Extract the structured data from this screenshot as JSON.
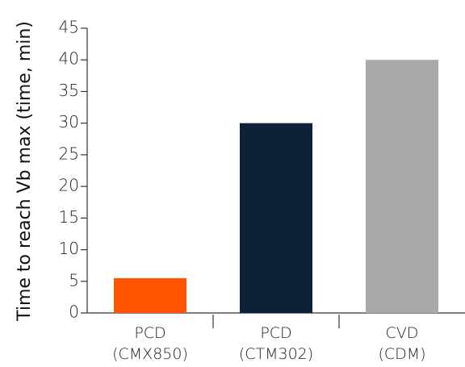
{
  "chart_data": {
    "type": "bar",
    "title": "",
    "xlabel": "",
    "ylabel": "Time to reach Vb max (time, min)",
    "ylim": [
      0,
      45
    ],
    "ytick_step": 5,
    "grid": false,
    "legend": "none",
    "categories": [
      [
        "PCD",
        "(CMX850)"
      ],
      [
        "PCD",
        "(CTM302)"
      ],
      [
        "CVD",
        "(CDM)"
      ]
    ],
    "values": [
      5.5,
      30,
      40
    ],
    "colors": [
      "#ff5500",
      "#0d2238",
      "#a8a9ab"
    ]
  }
}
